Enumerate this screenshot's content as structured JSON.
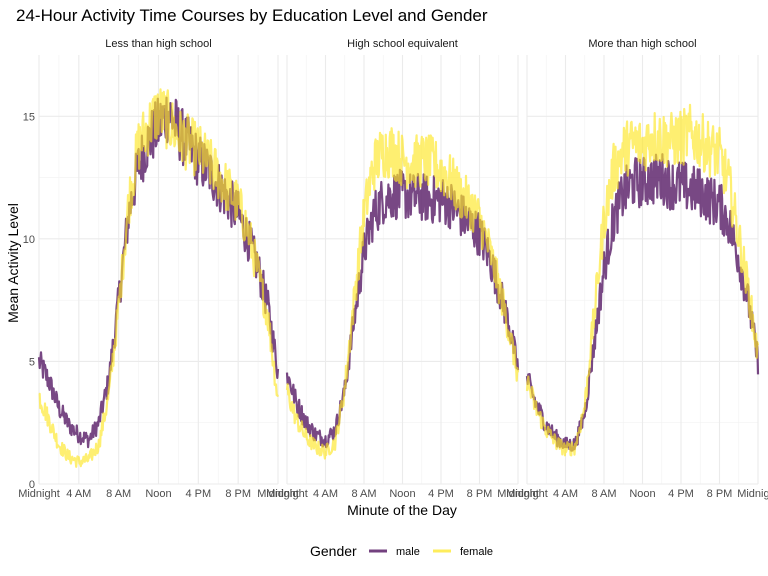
{
  "chart_data": {
    "type": "line",
    "title": "24-Hour Activity Time Courses by Education Level and Gender",
    "xlabel": "Minute of the Day",
    "ylabel": "Mean Activity Level",
    "xlim": [
      0,
      1440
    ],
    "ylim": [
      0,
      17.5
    ],
    "x_ticks": [
      {
        "value": 0,
        "label": "Midnight"
      },
      {
        "value": 240,
        "label": "4 AM"
      },
      {
        "value": 480,
        "label": "8 AM"
      },
      {
        "value": 720,
        "label": "Noon"
      },
      {
        "value": 960,
        "label": "4 PM"
      },
      {
        "value": 1200,
        "label": "8 PM"
      },
      {
        "value": 1440,
        "label": "Midnight"
      }
    ],
    "y_ticks": [
      {
        "value": 0,
        "label": "0"
      },
      {
        "value": 5,
        "label": "5"
      },
      {
        "value": 10,
        "label": "10"
      },
      {
        "value": 15,
        "label": "15"
      }
    ],
    "grid": true,
    "legend": {
      "title": "Gender",
      "position": "bottom"
    },
    "series_styles": [
      {
        "name": "male",
        "color": "#440154"
      },
      {
        "name": "female",
        "color": "#FDE725"
      }
    ],
    "panels": [
      {
        "title": "Less than high school",
        "series": [
          {
            "name": "male",
            "x": [
              0,
              60,
              120,
              180,
              240,
              300,
              360,
              420,
              480,
              540,
              600,
              660,
              720,
              780,
              840,
              900,
              960,
              1020,
              1080,
              1140,
              1200,
              1260,
              1320,
              1380,
              1440
            ],
            "y": [
              5.0,
              4.2,
              3.1,
              2.4,
              2.0,
              1.8,
              2.5,
              4.2,
              7.5,
              11.0,
              13.0,
              14.0,
              14.6,
              15.2,
              14.4,
              13.8,
              13.2,
              12.8,
              12.2,
              11.6,
              11.0,
              10.0,
              8.8,
              7.2,
              4.6
            ]
          },
          {
            "name": "female",
            "x": [
              0,
              60,
              120,
              180,
              240,
              300,
              360,
              420,
              480,
              540,
              600,
              660,
              720,
              780,
              840,
              900,
              960,
              1020,
              1080,
              1140,
              1200,
              1260,
              1320,
              1380,
              1440
            ],
            "y": [
              3.6,
              2.6,
              1.6,
              1.1,
              0.9,
              1.0,
              1.6,
              3.6,
              7.2,
              11.5,
              13.8,
              14.6,
              15.2,
              14.8,
              14.2,
              13.9,
              13.6,
              13.1,
              12.6,
              12.0,
              11.4,
              10.3,
              8.6,
              6.8,
              3.4
            ]
          }
        ]
      },
      {
        "title": "High school equivalent",
        "series": [
          {
            "name": "male",
            "x": [
              0,
              60,
              120,
              180,
              240,
              300,
              360,
              420,
              480,
              540,
              600,
              660,
              720,
              780,
              840,
              900,
              960,
              1020,
              1080,
              1140,
              1200,
              1260,
              1320,
              1380,
              1440
            ],
            "y": [
              4.5,
              3.3,
              2.5,
              2.0,
              1.8,
              2.2,
              3.8,
              6.8,
              9.5,
              11.0,
              11.6,
              11.8,
              11.8,
              11.7,
              11.7,
              11.6,
              11.6,
              11.4,
              11.0,
              10.6,
              10.2,
              9.3,
              8.0,
              6.6,
              4.7
            ]
          },
          {
            "name": "female",
            "x": [
              0,
              60,
              120,
              180,
              240,
              300,
              360,
              420,
              480,
              540,
              600,
              660,
              720,
              780,
              840,
              900,
              960,
              1020,
              1080,
              1140,
              1200,
              1260,
              1320,
              1380,
              1440
            ],
            "y": [
              3.8,
              2.6,
              1.9,
              1.5,
              1.3,
              1.7,
              3.9,
              7.6,
              11.0,
              13.0,
              13.6,
              13.6,
              13.2,
              13.1,
              13.2,
              13.1,
              12.8,
              12.4,
              11.8,
              11.4,
              10.8,
              9.6,
              8.1,
              6.4,
              4.4
            ]
          }
        ]
      },
      {
        "title": "More than high school",
        "series": [
          {
            "name": "male",
            "x": [
              0,
              60,
              120,
              180,
              240,
              300,
              360,
              420,
              480,
              540,
              600,
              660,
              720,
              780,
              840,
              900,
              960,
              1020,
              1080,
              1140,
              1200,
              1260,
              1320,
              1380,
              1440
            ],
            "y": [
              4.3,
              3.2,
              2.4,
              1.9,
              1.6,
              1.6,
              2.9,
              5.8,
              8.8,
              10.8,
              11.8,
              12.3,
              12.3,
              12.4,
              12.5,
              12.2,
              12.2,
              12.0,
              11.9,
              11.6,
              11.4,
              10.6,
              9.2,
              7.4,
              5.0
            ]
          },
          {
            "name": "female",
            "x": [
              0,
              60,
              120,
              180,
              240,
              300,
              360,
              420,
              480,
              540,
              600,
              660,
              720,
              780,
              840,
              900,
              960,
              1020,
              1080,
              1140,
              1200,
              1260,
              1320,
              1380,
              1440
            ],
            "y": [
              4.2,
              3.0,
              2.2,
              1.7,
              1.4,
              1.5,
              3.2,
              7.0,
              10.8,
              12.8,
              13.6,
              13.9,
              13.8,
              14.2,
              14.1,
              14.0,
              14.1,
              14.3,
              14.0,
              13.7,
              13.4,
              12.2,
              10.1,
              7.9,
              5.2
            ]
          }
        ]
      }
    ]
  }
}
